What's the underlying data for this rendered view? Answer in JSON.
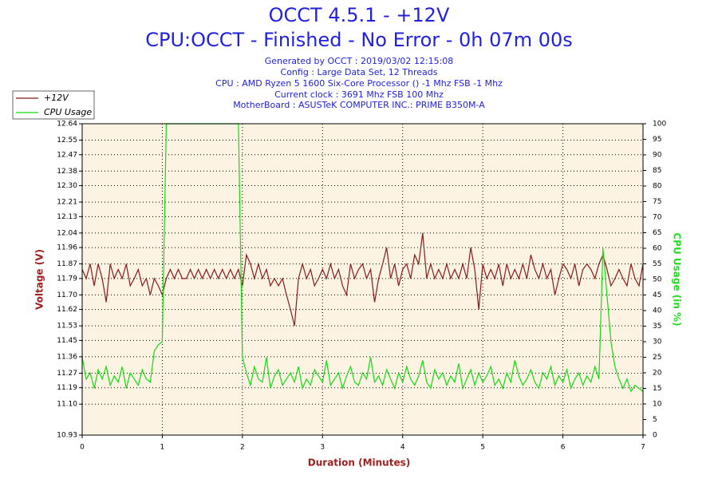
{
  "chart_data": {
    "type": "line",
    "title": "OCCT 4.5.1 - +12V",
    "subtitle": "CPU:OCCT - Finished - No Error - 0h 07m 00s",
    "notes": [
      "Generated by OCCT : 2019/03/02 12:15:08",
      "Config : Large Data Set, 12 Threads",
      "CPU : AMD Ryzen 5 1600 Six-Core Processor () -1 Mhz FSB -1 Mhz",
      "Current clock : 3691 Mhz FSB 100 Mhz",
      "MotherBoard : ASUSTeK COMPUTER INC.: PRIME B350M-A"
    ],
    "xlabel": "Duration (Minutes)",
    "ylabel": "Voltage (V)",
    "y2label": "CPU Usage (in %)",
    "grid": true,
    "xlim": [
      0,
      7
    ],
    "xticks": [
      0,
      1,
      2,
      3,
      4,
      5,
      6,
      7
    ],
    "ylim": [
      10.93,
      12.64
    ],
    "yticks": [
      10.93,
      {
        "value": 11.1,
        "label": "11.10"
      },
      11.19,
      11.27,
      11.36,
      11.45,
      11.53,
      11.62,
      {
        "value": 11.7,
        "label": "11.70"
      },
      11.79,
      11.87,
      11.96,
      12.04,
      12.13,
      12.21,
      {
        "value": 12.3,
        "label": "12.30"
      },
      12.38,
      12.47,
      12.55,
      12.64
    ],
    "y2lim": [
      0,
      100
    ],
    "y2ticks": [
      0,
      5,
      10,
      15,
      20,
      25,
      30,
      35,
      40,
      45,
      50,
      55,
      60,
      65,
      70,
      75,
      80,
      85,
      90,
      95,
      100
    ],
    "x": [
      0,
      0.05,
      0.1,
      0.15,
      0.2,
      0.25,
      0.3,
      0.35,
      0.4,
      0.45,
      0.5,
      0.55,
      0.6,
      0.65,
      0.7,
      0.75,
      0.8,
      0.85,
      0.9,
      0.95,
      1,
      1.05,
      1.1,
      1.15,
      1.2,
      1.25,
      1.3,
      1.35,
      1.4,
      1.45,
      1.5,
      1.55,
      1.6,
      1.65,
      1.7,
      1.75,
      1.8,
      1.85,
      1.9,
      1.95,
      2,
      2.05,
      2.1,
      2.15,
      2.2,
      2.25,
      2.3,
      2.35,
      2.4,
      2.45,
      2.5,
      2.55,
      2.6,
      2.65,
      2.7,
      2.75,
      2.8,
      2.85,
      2.9,
      2.95,
      3,
      3.05,
      3.1,
      3.15,
      3.2,
      3.25,
      3.3,
      3.35,
      3.4,
      3.45,
      3.5,
      3.55,
      3.6,
      3.65,
      3.7,
      3.75,
      3.8,
      3.85,
      3.9,
      3.95,
      4,
      4.05,
      4.1,
      4.15,
      4.2,
      4.25,
      4.3,
      4.35,
      4.4,
      4.45,
      4.5,
      4.55,
      4.6,
      4.65,
      4.7,
      4.75,
      4.8,
      4.85,
      4.9,
      4.95,
      5,
      5.05,
      5.1,
      5.15,
      5.2,
      5.25,
      5.3,
      5.35,
      5.4,
      5.45,
      5.5,
      5.55,
      5.6,
      5.65,
      5.7,
      5.75,
      5.8,
      5.85,
      5.9,
      5.95,
      6,
      6.05,
      6.1,
      6.15,
      6.2,
      6.25,
      6.3,
      6.35,
      6.4,
      6.45,
      6.5,
      6.55,
      6.6,
      6.65,
      6.7,
      6.75,
      6.8,
      6.85,
      6.9,
      6.95,
      7
    ],
    "series": [
      {
        "name": "+12V",
        "color": "#8b1a1a",
        "values": [
          11.84,
          11.79,
          11.87,
          11.75,
          11.87,
          11.79,
          11.66,
          11.87,
          11.79,
          11.84,
          11.79,
          11.87,
          11.75,
          11.79,
          11.84,
          11.75,
          11.79,
          11.7,
          11.79,
          11.75,
          11.7,
          11.79,
          11.84,
          11.79,
          11.84,
          11.79,
          11.79,
          11.84,
          11.79,
          11.84,
          11.79,
          11.84,
          11.79,
          11.84,
          11.79,
          11.84,
          11.79,
          11.84,
          11.79,
          11.84,
          11.75,
          11.92,
          11.87,
          11.79,
          11.87,
          11.79,
          11.84,
          11.75,
          11.79,
          11.75,
          11.79,
          11.7,
          11.62,
          11.53,
          11.79,
          11.87,
          11.79,
          11.84,
          11.75,
          11.79,
          11.84,
          11.79,
          11.87,
          11.79,
          11.84,
          11.75,
          11.7,
          11.87,
          11.79,
          11.84,
          11.87,
          11.79,
          11.84,
          11.66,
          11.79,
          11.87,
          11.96,
          11.79,
          11.87,
          11.75,
          11.84,
          11.87,
          11.79,
          11.92,
          11.87,
          12.04,
          11.79,
          11.87,
          11.79,
          11.84,
          11.79,
          11.87,
          11.79,
          11.84,
          11.79,
          11.87,
          11.79,
          11.96,
          11.84,
          11.62,
          11.87,
          11.79,
          11.84,
          11.79,
          11.87,
          11.75,
          11.87,
          11.79,
          11.84,
          11.79,
          11.87,
          11.79,
          11.92,
          11.84,
          11.79,
          11.87,
          11.79,
          11.84,
          11.7,
          11.79,
          11.87,
          11.84,
          11.79,
          11.87,
          11.75,
          11.84,
          11.87,
          11.84,
          11.79,
          11.87,
          11.92,
          11.84,
          11.75,
          11.79,
          11.84,
          11.79,
          11.75,
          11.87,
          11.79,
          11.75,
          11.87
        ]
      },
      {
        "name": "CPU Usage",
        "color": "#11dd11",
        "axis": "y2",
        "values": [
          25,
          18,
          20,
          15,
          21,
          18,
          22,
          16,
          19,
          17,
          22,
          15,
          20,
          18,
          16,
          21,
          18,
          17,
          27,
          29,
          30,
          100,
          100,
          100,
          100,
          100,
          100,
          100,
          100,
          100,
          100,
          100,
          100,
          100,
          100,
          100,
          100,
          100,
          100,
          100,
          25,
          20,
          16,
          22,
          18,
          17,
          25,
          15,
          19,
          21,
          16,
          18,
          20,
          17,
          22,
          15,
          18,
          16,
          21,
          19,
          17,
          24,
          16,
          18,
          20,
          15,
          19,
          22,
          17,
          16,
          20,
          18,
          25,
          17,
          19,
          16,
          21,
          18,
          15,
          20,
          17,
          22,
          18,
          16,
          19,
          24,
          17,
          15,
          21,
          18,
          20,
          16,
          19,
          17,
          23,
          15,
          18,
          21,
          16,
          20,
          17,
          19,
          22,
          16,
          18,
          15,
          20,
          17,
          24,
          19,
          16,
          18,
          21,
          17,
          15,
          20,
          18,
          22,
          16,
          19,
          17,
          21,
          15,
          18,
          20,
          16,
          19,
          17,
          22,
          18,
          60,
          45,
          30,
          22,
          18,
          15,
          18,
          14,
          16,
          15,
          14
        ]
      }
    ]
  }
}
